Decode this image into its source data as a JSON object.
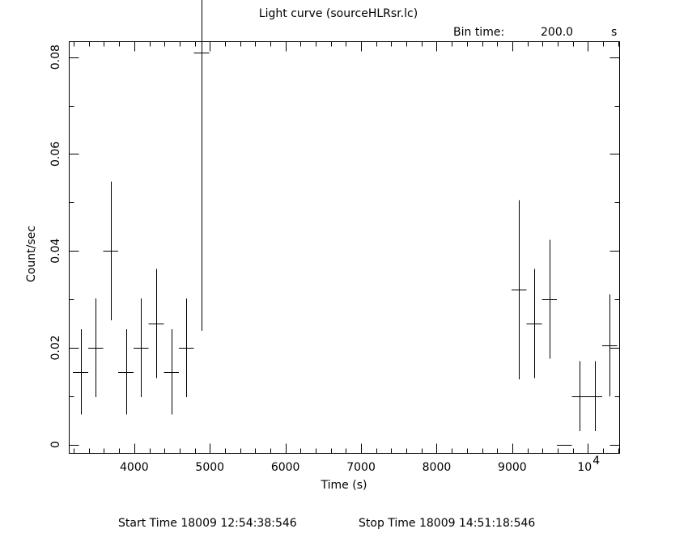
{
  "chart_data": {
    "type": "scatter",
    "title": "Light curve (sourceHLRsr.lc)",
    "bin_time_label": "Bin time:",
    "bin_time_value": "200.0",
    "bin_time_unit": "s",
    "xlabel": "Time (s)",
    "ylabel": "Count/sec",
    "xlim": [
      3140,
      10420
    ],
    "ylim": [
      -0.0018,
      0.0832
    ],
    "x_ticks": [
      {
        "value": 4000,
        "label": "4000"
      },
      {
        "value": 5000,
        "label": "5000"
      },
      {
        "value": 6000,
        "label": "6000"
      },
      {
        "value": 7000,
        "label": "7000"
      },
      {
        "value": 8000,
        "label": "8000"
      },
      {
        "value": 9000,
        "label": "9000"
      },
      {
        "value": 10000,
        "label": "10",
        "sup": "4"
      }
    ],
    "y_ticks": [
      {
        "value": 0,
        "label": "0"
      },
      {
        "value": 0.02,
        "label": "0.02"
      },
      {
        "value": 0.04,
        "label": "0.04"
      },
      {
        "value": 0.06,
        "label": "0.06"
      },
      {
        "value": 0.08,
        "label": "0.08"
      }
    ],
    "x_minor_step": 200,
    "y_minor_step": 0.01,
    "bin_width": 200,
    "points": [
      {
        "x": 3290,
        "y": 0.015,
        "err": 0.0088
      },
      {
        "x": 3490,
        "y": 0.02,
        "err": 0.0102
      },
      {
        "x": 3690,
        "y": 0.04,
        "err": 0.0143
      },
      {
        "x": 3890,
        "y": 0.015,
        "err": 0.0088
      },
      {
        "x": 4090,
        "y": 0.02,
        "err": 0.0102
      },
      {
        "x": 4290,
        "y": 0.025,
        "err": 0.0113
      },
      {
        "x": 4490,
        "y": 0.015,
        "err": 0.0088
      },
      {
        "x": 4690,
        "y": 0.02,
        "err": 0.0102
      },
      {
        "x": 4890,
        "y": 0.081,
        "err": 0.0575
      },
      {
        "x": 9090,
        "y": 0.032,
        "err": 0.0185
      },
      {
        "x": 9290,
        "y": 0.025,
        "err": 0.0113
      },
      {
        "x": 9490,
        "y": 0.03,
        "err": 0.0123
      },
      {
        "x": 9690,
        "y": 0.0,
        "err": 0.0
      },
      {
        "x": 9890,
        "y": 0.01,
        "err": 0.0072
      },
      {
        "x": 10090,
        "y": 0.01,
        "err": 0.0072
      },
      {
        "x": 10290,
        "y": 0.0205,
        "err": 0.0105
      },
      {
        "x": 10420,
        "y": 0.02,
        "err": 0.0
      }
    ],
    "grid": false,
    "legend": "none"
  },
  "footer": {
    "start_label": "Start Time 18009 12:54:38:546",
    "stop_label": "Stop Time 18009 14:51:18:546"
  }
}
